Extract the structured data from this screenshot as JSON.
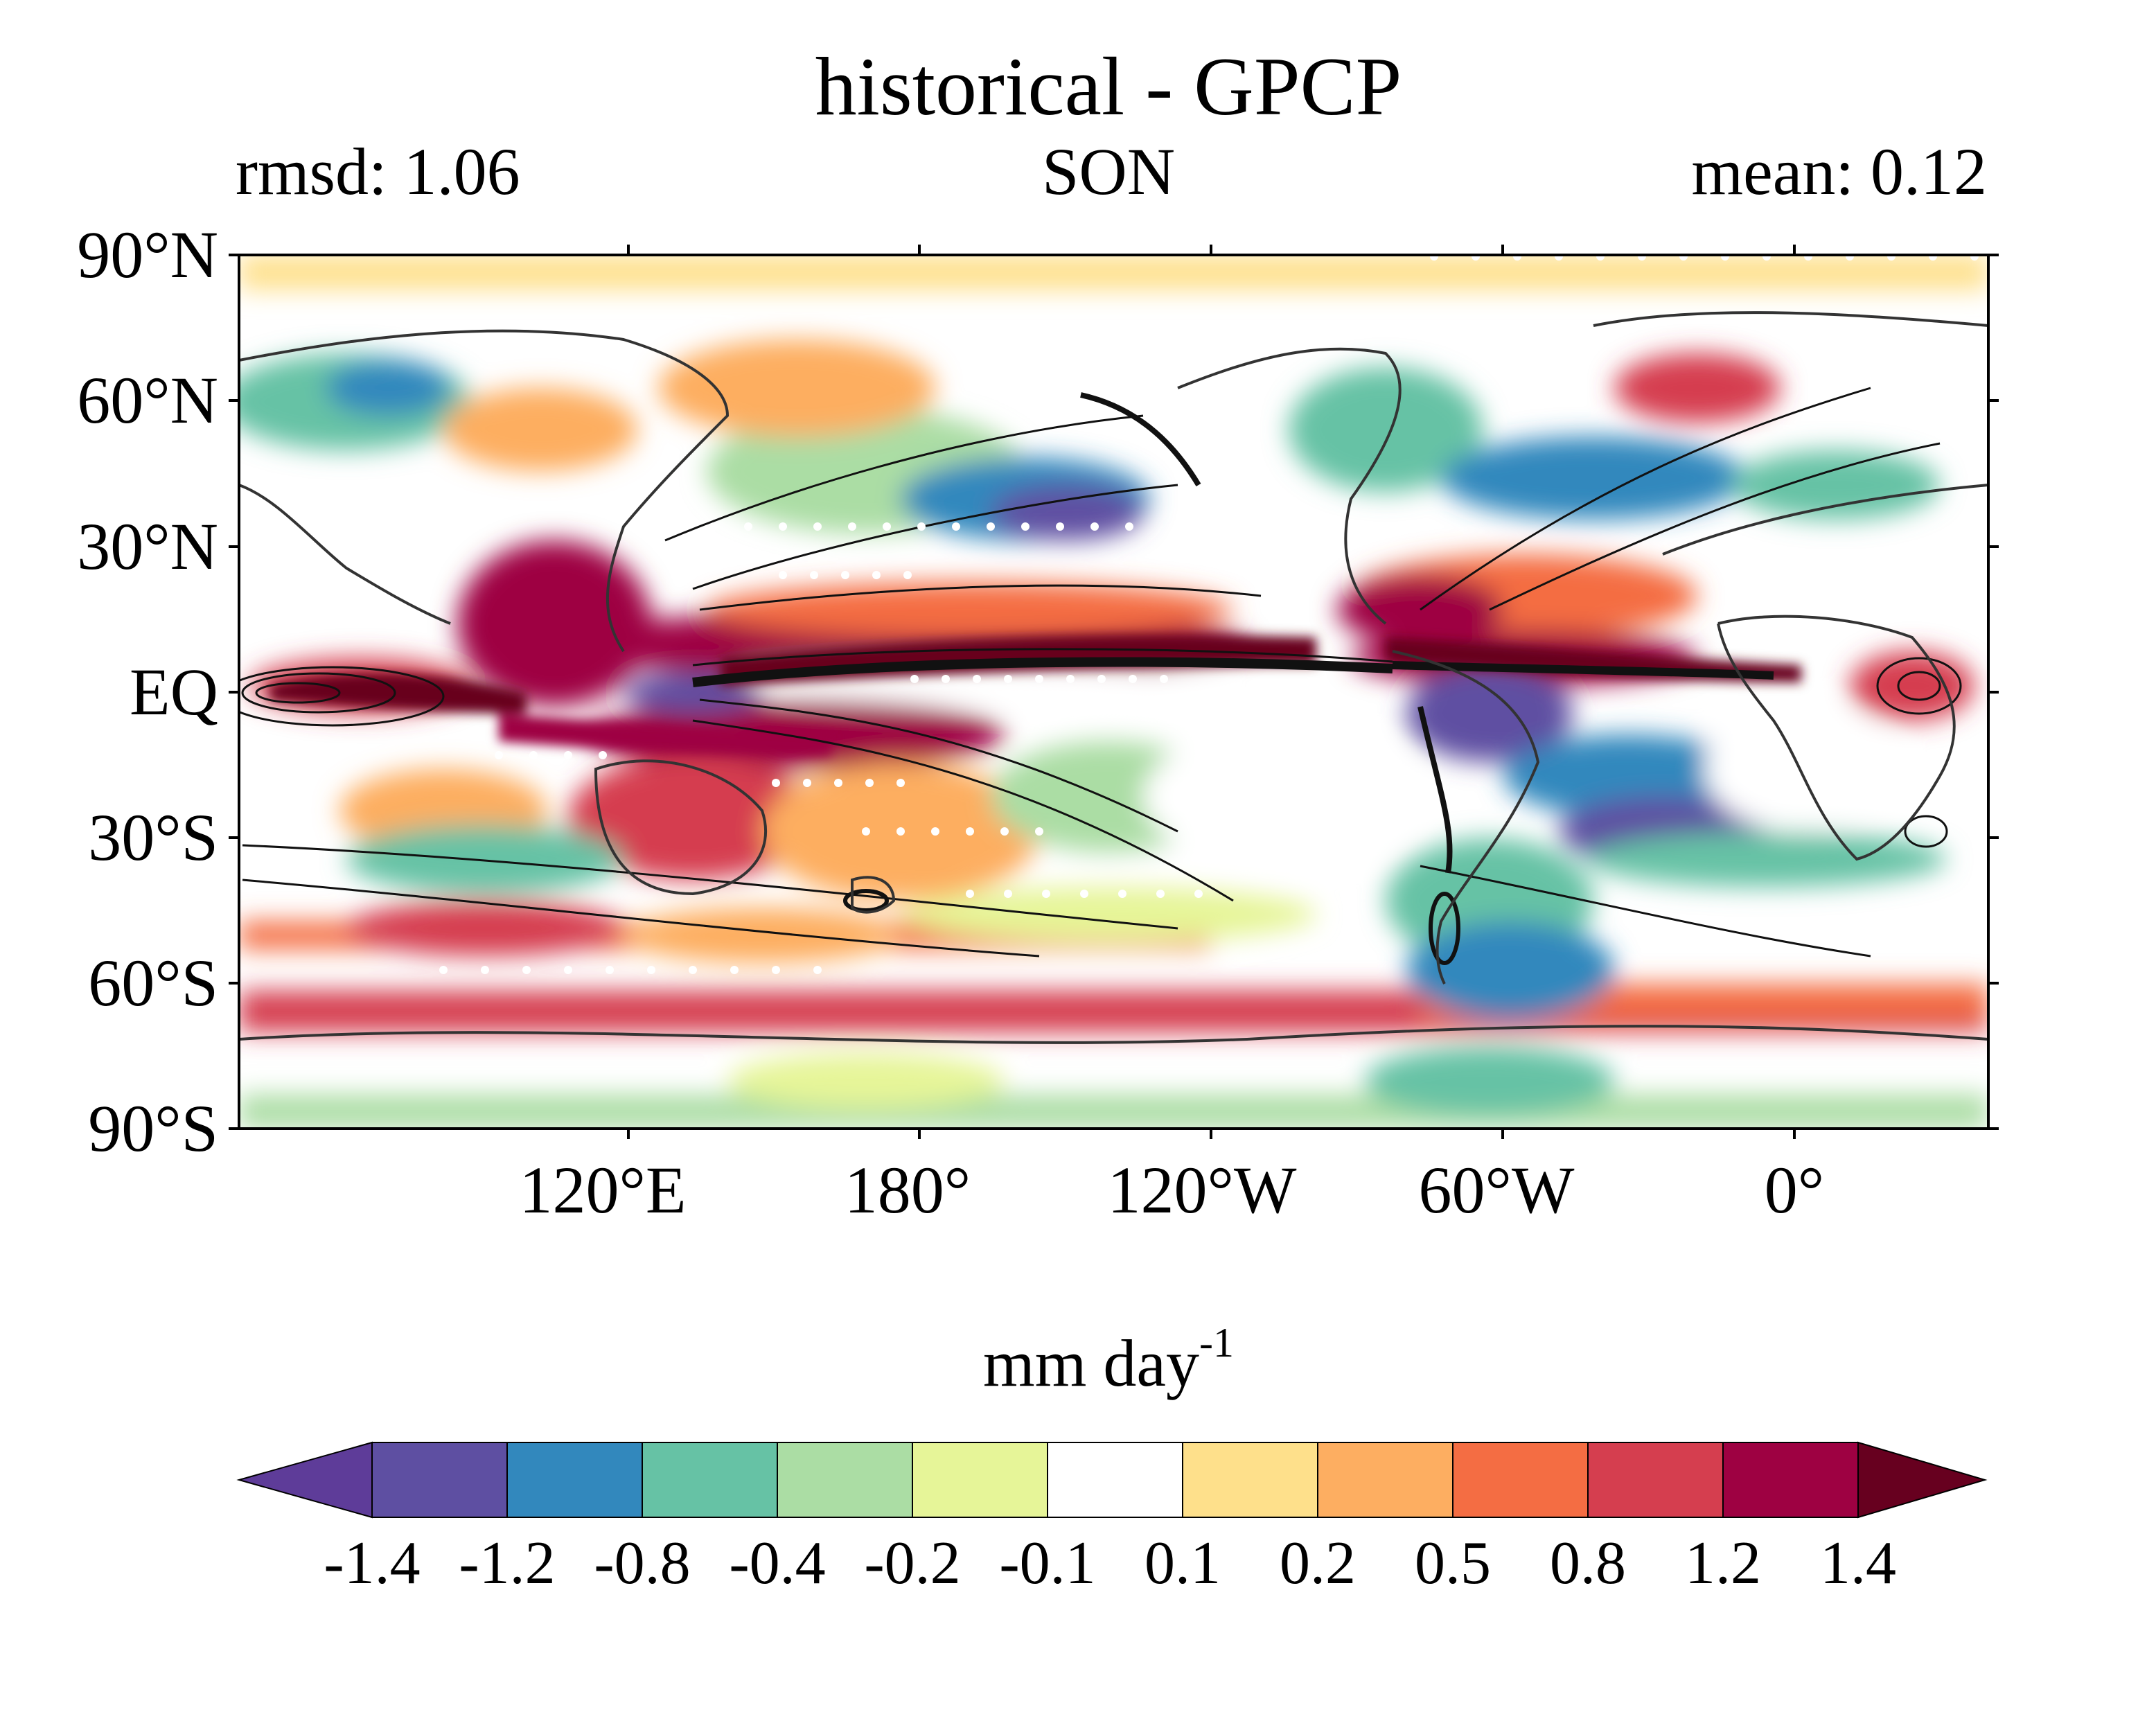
{
  "figure": {
    "title": "historical - GPCP",
    "left_subtitle": "rmsd: 1.06",
    "center_subtitle": "SON",
    "right_subtitle": "mean: 0.12"
  },
  "map": {
    "projection": "equirectangular, centered on Pacific",
    "lat_ticks": [
      "90°N",
      "60°N",
      "30°N",
      "EQ",
      "30°S",
      "60°S",
      "90°S"
    ],
    "lon_ticks": [
      "120°E",
      "180°",
      "120°W",
      "60°W",
      "0°"
    ],
    "overlays": [
      "filled difference contours",
      "black line contours",
      "white stipple dots",
      "coastlines"
    ]
  },
  "colorbar": {
    "unit_main": "mm day",
    "unit_exponent": "-1",
    "levels": [
      "-1.4",
      "-1.2",
      "-0.8",
      "-0.4",
      "-0.2",
      "-0.1",
      "0.1",
      "0.2",
      "0.5",
      "0.8",
      "1.2",
      "1.4"
    ],
    "colors": [
      "#5e3c99",
      "#5e4fa2",
      "#3288bd",
      "#66c2a5",
      "#abdda4",
      "#e6f598",
      "#ffffff",
      "#fee08b",
      "#fdae61",
      "#f46d43",
      "#d53e4f",
      "#9e0142",
      "#67001f"
    ],
    "extend": "both"
  },
  "chart_data": {
    "type": "heatmap",
    "title": "historical - GPCP",
    "subtitle_left": "rmsd: 1.06",
    "subtitle_center": "SON",
    "subtitle_right": "mean: 0.12",
    "colorbar_label": "mm day-1",
    "colorbar_levels": [
      -1.4,
      -1.2,
      -0.8,
      -0.4,
      -0.2,
      -0.1,
      0.1,
      0.2,
      0.5,
      0.8,
      1.2,
      1.4
    ],
    "lat_range": [
      -90,
      90
    ],
    "lon_ticks": [
      "120°E",
      "180°",
      "120°W",
      "60°W",
      "0°"
    ]
  }
}
